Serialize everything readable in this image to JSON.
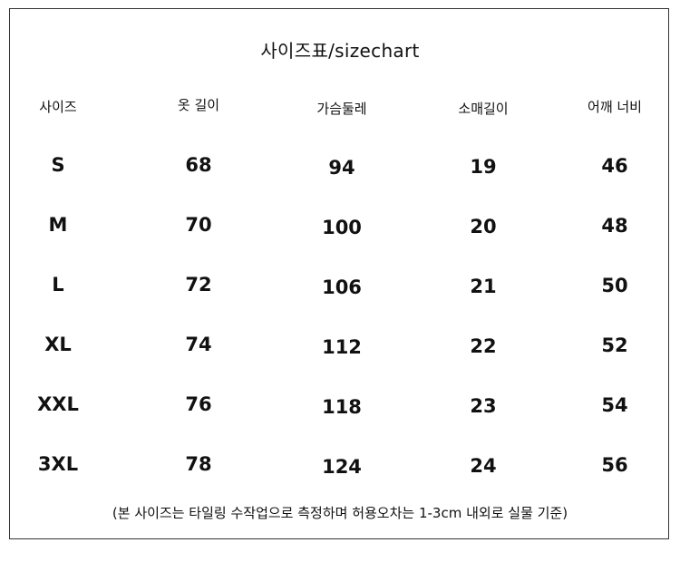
{
  "title": "사이즈표/sizechart",
  "headers": [
    "사이즈",
    "옷 길이",
    "가슴둘레",
    "소매길이",
    "어깨 너비"
  ],
  "rows": [
    [
      "S",
      "68",
      "94",
      "19",
      "46"
    ],
    [
      "M",
      "70",
      "100",
      "20",
      "48"
    ],
    [
      "L",
      "72",
      "106",
      "21",
      "50"
    ],
    [
      "XL",
      "74",
      "112",
      "22",
      "52"
    ],
    [
      "XXL",
      "76",
      "118",
      "23",
      "54"
    ],
    [
      "3XL",
      "78",
      "124",
      "24",
      "56"
    ]
  ],
  "note": "(본 사이즈는 타일링 수작업으로 측정하며 허용오차는 1-3cm 내외로 실물 기준)"
}
